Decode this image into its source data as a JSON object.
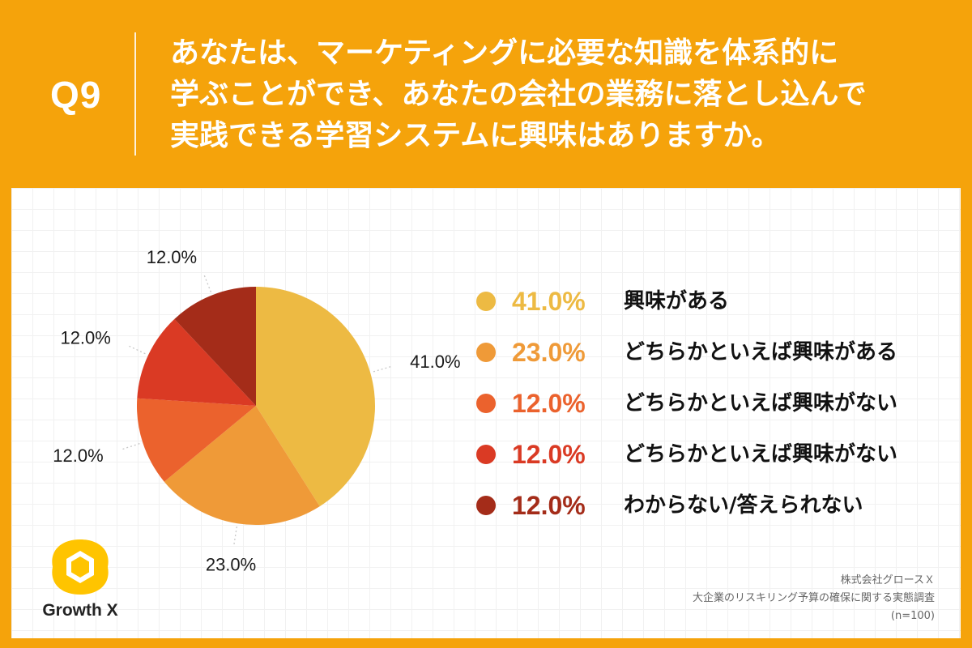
{
  "header": {
    "question_number": "Q9",
    "question_lines": [
      "あなたは、マーケティングに必要な知識を体系的に",
      "学ぶことができ、あなたの会社の業務に落とし込んで",
      "実践できる学習システムに興味はありますか。"
    ]
  },
  "chart_data": {
    "type": "pie",
    "title": "",
    "slices": [
      {
        "label": "興味がある",
        "value": 41.0,
        "display": "41.0%",
        "color": "#EDBA43"
      },
      {
        "label": "どちらかといえば興味がある",
        "value": 23.0,
        "display": "23.0%",
        "color": "#EF9A38"
      },
      {
        "label": "どちらかといえば興味がない",
        "value": 12.0,
        "display": "12.0%",
        "color": "#EB622D"
      },
      {
        "label": "どちらかといえば興味がない",
        "value": 12.0,
        "display": "12.0%",
        "color": "#DA3A24"
      },
      {
        "label": "わからない/答えられない",
        "value": 12.0,
        "display": "12.0%",
        "color": "#A42C19"
      }
    ],
    "legend_position": "right"
  },
  "logo": {
    "text": "Growth X",
    "color": "#FFC400"
  },
  "source": {
    "company": "株式会社グロースＸ",
    "survey": "大企業のリスキリング予算の確保に関する実態調査",
    "sample": "(n=100)"
  }
}
